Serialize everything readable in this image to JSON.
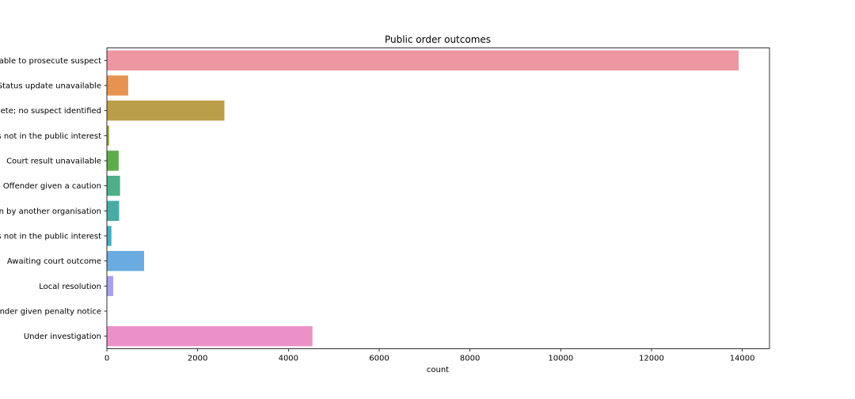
{
  "chart_data": {
    "type": "bar",
    "orientation": "horizontal",
    "title": "Public order outcomes",
    "xlabel": "count",
    "ylabel": "",
    "xlim": [
      0,
      14600
    ],
    "xticks": [
      0,
      2000,
      4000,
      6000,
      8000,
      10000,
      12000,
      14000
    ],
    "grid": false,
    "categories": [
      "Unable to prosecute suspect",
      "Status update unavailable",
      "Investigation complete; no suspect identified",
      "Formal action is not in the public interest",
      "Court result unavailable",
      "Offender given a caution",
      "Action to be taken by another organisation",
      "Further action is not in the public interest",
      "Awaiting court outcome",
      "Local resolution",
      "Offender given penalty notice",
      "Under investigation"
    ],
    "values": [
      13920,
      470,
      2590,
      50,
      260,
      290,
      270,
      100,
      820,
      140,
      5,
      4530
    ],
    "colors": [
      "#ee96a2",
      "#e6934f",
      "#bb9e4a",
      "#9da63f",
      "#5cad4a",
      "#4caf88",
      "#4aaaa6",
      "#4ba9c0",
      "#6aabe0",
      "#a9a1ec",
      "#d58fe8",
      "#ec91c8"
    ]
  }
}
